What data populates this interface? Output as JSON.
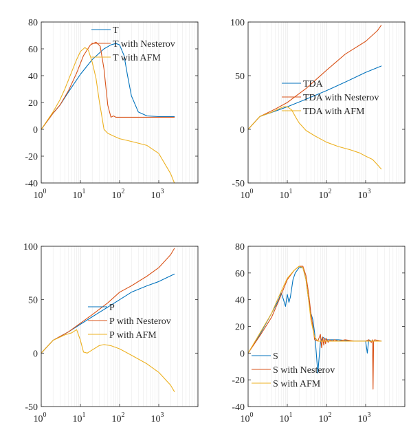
{
  "colors": {
    "blue": "#0072BD",
    "orange": "#D95319",
    "yellow": "#EDB120"
  },
  "chart_data": [
    {
      "type": "line",
      "xscale": "log",
      "xlim": [
        1,
        10000
      ],
      "ylim": [
        -40,
        80
      ],
      "yticks": [
        -40,
        -20,
        0,
        20,
        40,
        60,
        80
      ],
      "grid": true,
      "legend_position": "top-center",
      "series": [
        {
          "name": "T",
          "color": "#0072BD",
          "x": [
            1,
            2,
            3,
            5,
            10,
            20,
            40,
            60,
            80,
            100,
            130,
            160,
            200,
            300,
            500,
            1000,
            2500
          ],
          "y": [
            0,
            12,
            18,
            28,
            41,
            52,
            60,
            63,
            64,
            63,
            55,
            40,
            25,
            13,
            10,
            9.5,
            9.5
          ]
        },
        {
          "name": "T with Nesterov",
          "color": "#D95319",
          "x": [
            1,
            2,
            3,
            5,
            8,
            12,
            18,
            25,
            32,
            40,
            50,
            60,
            70,
            80,
            100,
            200,
            500,
            2500
          ],
          "y": [
            0,
            12,
            18,
            29,
            42,
            55,
            63,
            65,
            62,
            45,
            18,
            9,
            10,
            9,
            9,
            9,
            9,
            9
          ]
        },
        {
          "name": "T with AFM",
          "color": "#EDB120",
          "x": [
            1,
            2,
            3,
            4,
            6,
            8,
            10,
            13,
            16,
            20,
            25,
            30,
            40,
            50,
            70,
            100,
            200,
            500,
            1000,
            2000,
            2500
          ],
          "y": [
            0,
            13,
            22,
            30,
            43,
            52,
            58,
            61,
            59,
            50,
            38,
            22,
            0,
            -3,
            -5,
            -7,
            -9,
            -12,
            -18,
            -33,
            -40
          ]
        }
      ]
    },
    {
      "type": "line",
      "xscale": "log",
      "xlim": [
        1,
        10000
      ],
      "ylim": [
        -50,
        100
      ],
      "yticks": [
        -50,
        0,
        50,
        100
      ],
      "grid": true,
      "legend_position": "center",
      "series": [
        {
          "name": "TDA",
          "color": "#0072BD",
          "x": [
            1,
            2,
            5,
            10,
            30,
            100,
            300,
            1000,
            2500
          ],
          "y": [
            0,
            12,
            17,
            21,
            28,
            36,
            44,
            53,
            59
          ]
        },
        {
          "name": "TDA with Nesterov",
          "color": "#D95319",
          "x": [
            1,
            2,
            5,
            10,
            30,
            100,
            300,
            1000,
            2000,
            2500
          ],
          "y": [
            0,
            12,
            19,
            25,
            38,
            55,
            70,
            82,
            92,
            97
          ]
        },
        {
          "name": "TDA with AFM",
          "color": "#EDB120",
          "x": [
            1,
            2,
            4,
            6,
            8,
            10,
            13,
            16,
            20,
            30,
            50,
            100,
            200,
            400,
            700,
            1000,
            1500,
            2000,
            2500
          ],
          "y": [
            0,
            12,
            16,
            19,
            21,
            21,
            18,
            12,
            6,
            -1,
            -6,
            -12,
            -16,
            -19,
            -22,
            -25,
            -28,
            -33,
            -37
          ]
        }
      ]
    },
    {
      "type": "line",
      "xscale": "log",
      "xlim": [
        1,
        10000
      ],
      "ylim": [
        -50,
        100
      ],
      "yticks": [
        -50,
        0,
        50,
        100
      ],
      "grid": true,
      "legend_position": "center",
      "series": [
        {
          "name": "P",
          "color": "#0072BD",
          "x": [
            1,
            2,
            5,
            10,
            20,
            30,
            50,
            100,
            200,
            500,
            1000,
            2500
          ],
          "y": [
            0,
            12,
            20,
            27,
            34,
            38,
            43,
            50,
            57,
            63,
            67,
            74
          ]
        },
        {
          "name": "P with Nesterov",
          "color": "#D95319",
          "x": [
            1,
            2,
            5,
            10,
            20,
            50,
            100,
            200,
            500,
            1000,
            2000,
            2500
          ],
          "y": [
            0,
            12,
            20,
            28,
            36,
            47,
            57,
            63,
            72,
            80,
            92,
            98
          ]
        },
        {
          "name": "P with AFM",
          "color": "#EDB120",
          "x": [
            1,
            2,
            4,
            6,
            8,
            10,
            12,
            15,
            20,
            30,
            40,
            60,
            100,
            200,
            500,
            1000,
            2000,
            2500
          ],
          "y": [
            0,
            12,
            17,
            19,
            22,
            12,
            1,
            0,
            3,
            7,
            8,
            7,
            4,
            -2,
            -10,
            -18,
            -30,
            -36
          ]
        }
      ]
    },
    {
      "type": "line",
      "xscale": "log",
      "xlim": [
        1,
        10000
      ],
      "ylim": [
        -40,
        80
      ],
      "yticks": [
        -40,
        -20,
        0,
        20,
        40,
        60,
        80
      ],
      "grid": true,
      "legend_position": "bottom-left",
      "series": [
        {
          "name": "S",
          "color": "#0072BD",
          "x": [
            1,
            2,
            4,
            6,
            7,
            8,
            9,
            10,
            11,
            12,
            14,
            16,
            20,
            25,
            30,
            35,
            40,
            45,
            50,
            55,
            60,
            70,
            80,
            100,
            200,
            500,
            1000,
            1100,
            1200,
            1400,
            2500
          ],
          "y": [
            0,
            14,
            30,
            40,
            45,
            40,
            35,
            44,
            38,
            42,
            55,
            60,
            64,
            64,
            55,
            40,
            30,
            25,
            15,
            0,
            -15,
            8,
            12,
            10,
            10,
            9,
            9,
            0,
            10,
            9,
            9
          ]
        },
        {
          "name": "S with Nesterov",
          "color": "#D95319",
          "x": [
            1,
            2,
            4,
            6,
            8,
            10,
            15,
            20,
            25,
            30,
            35,
            40,
            45,
            50,
            60,
            70,
            75,
            80,
            85,
            90,
            95,
            100,
            110,
            120,
            140,
            160,
            200,
            300,
            500,
            1000,
            1200,
            1400,
            1500,
            1550,
            1600,
            1700,
            2500
          ],
          "y": [
            0,
            13,
            27,
            39,
            48,
            55,
            62,
            65,
            65,
            58,
            45,
            30,
            20,
            10,
            9,
            14,
            4,
            12,
            6,
            11,
            7,
            11,
            8,
            10,
            9,
            10,
            9,
            10,
            9,
            9,
            10,
            8,
            10,
            -27,
            9,
            10,
            9
          ]
        },
        {
          "name": "S with AFM",
          "color": "#EDB120",
          "x": [
            1,
            2,
            4,
            6,
            8,
            10,
            15,
            20,
            25,
            30,
            35,
            40,
            50,
            60,
            80,
            100,
            200,
            500,
            1000,
            2500
          ],
          "y": [
            0,
            15,
            30,
            42,
            50,
            56,
            62,
            65,
            64,
            55,
            40,
            25,
            12,
            9,
            9,
            9,
            9,
            9,
            9,
            9
          ]
        }
      ]
    }
  ]
}
